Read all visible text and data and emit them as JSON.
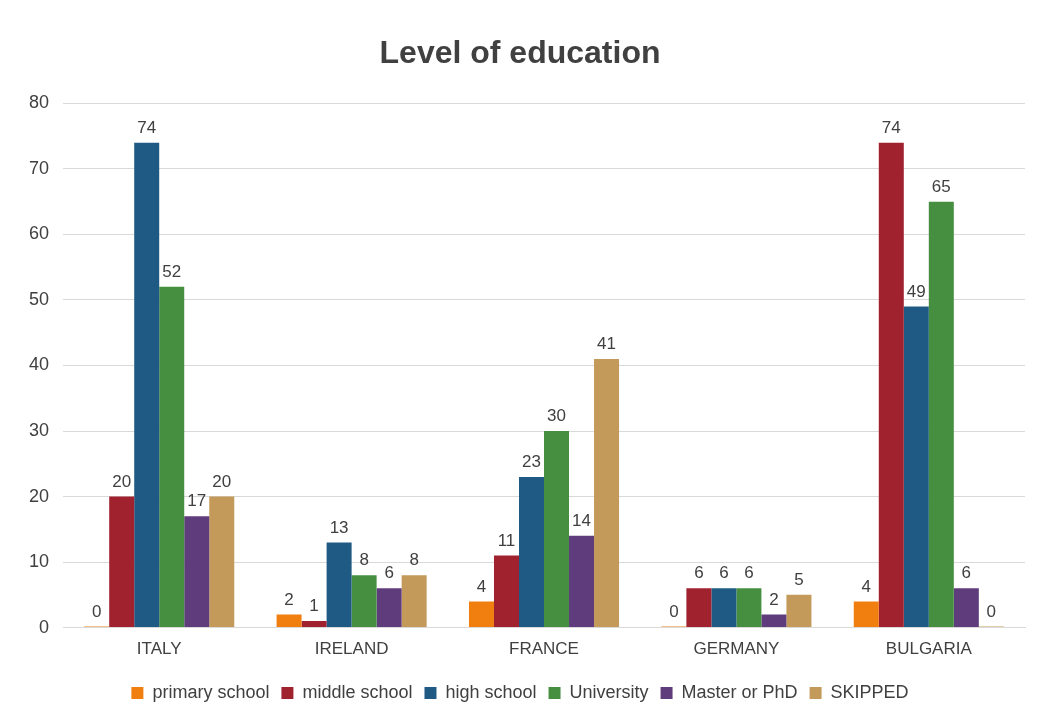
{
  "chart_data": {
    "type": "bar",
    "title": "Level of education",
    "categories": [
      "ITALY",
      "IRELAND",
      "FRANCE",
      "GERMANY",
      "BULGARIA"
    ],
    "series": [
      {
        "name": "primary school",
        "color": "#f07f10",
        "values": [
          0,
          2,
          4,
          0,
          4
        ]
      },
      {
        "name": "middle school",
        "color": "#a0222f",
        "values": [
          20,
          1,
          11,
          6,
          74
        ]
      },
      {
        "name": "high school",
        "color": "#1f5a85",
        "values": [
          74,
          13,
          23,
          6,
          49
        ]
      },
      {
        "name": "University",
        "color": "#468f40",
        "values": [
          52,
          8,
          30,
          6,
          65
        ]
      },
      {
        "name": "Master or PhD",
        "color": "#5f3d7c",
        "values": [
          17,
          6,
          14,
          2,
          6
        ]
      },
      {
        "name": "SKIPPED",
        "color": "#c49a5a",
        "values": [
          20,
          8,
          41,
          5,
          0
        ]
      }
    ],
    "ylim": [
      0,
      80
    ],
    "yticks": [
      0,
      10,
      20,
      30,
      40,
      50,
      60,
      70,
      80
    ],
    "grid": "y",
    "legend": "bottom",
    "data_labels": true
  }
}
